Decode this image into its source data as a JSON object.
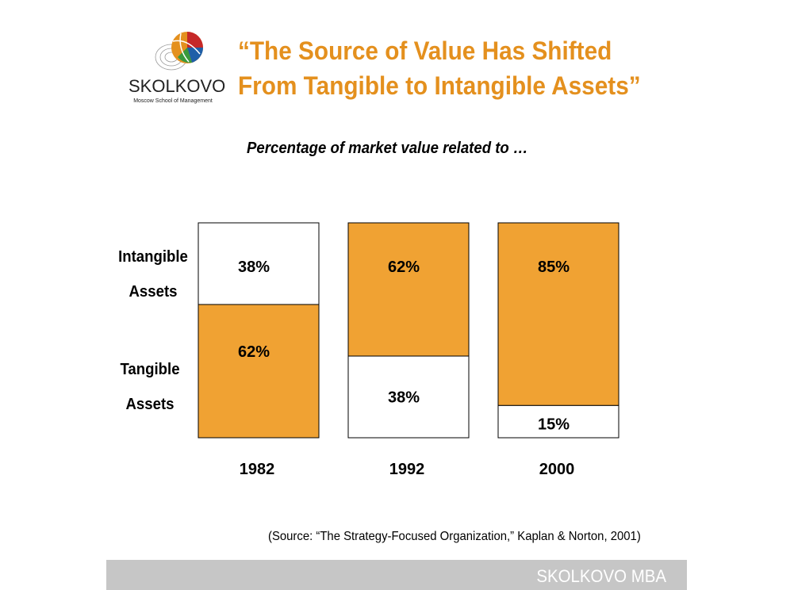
{
  "logo": {
    "wordmark": "SKOLKOVO",
    "tagline": "Moscow School of Management",
    "colors": [
      "#E4901E",
      "#1F5FA8",
      "#3A9A3C",
      "#C62828"
    ]
  },
  "header": {
    "title_line1": "“The Source of Value Has Shifted",
    "title_line2": "From Tangible to Intangible Assets”",
    "title_color": "#E4901E"
  },
  "subtitle": "Percentage of market value related to …",
  "row_labels": {
    "intangible_line1": "Intangible",
    "intangible_line2": "Assets",
    "tangible_line1": "Tangible",
    "tangible_line2": "Assets"
  },
  "chart_data": {
    "type": "bar",
    "stacked": true,
    "categories": [
      "1982",
      "1992",
      "2000"
    ],
    "series": [
      {
        "name": "Tangible Assets",
        "values": [
          62,
          38,
          15
        ],
        "labels": [
          "62%",
          "38%",
          "15%"
        ]
      },
      {
        "name": "Intangible Assets",
        "values": [
          38,
          62,
          85
        ],
        "labels": [
          "38%",
          "62%",
          "85%"
        ]
      }
    ],
    "highlight_color": "#F0A233",
    "plain_color": "#FFFFFF",
    "orange_segment": [
      "tangible",
      "intangible",
      "intangible"
    ],
    "ylim": [
      0,
      100
    ]
  },
  "source": "(Source: “The Strategy-Focused Organization,” Kaplan & Norton, 2001)",
  "footer": {
    "text": "SKOLKOVO MBA"
  }
}
